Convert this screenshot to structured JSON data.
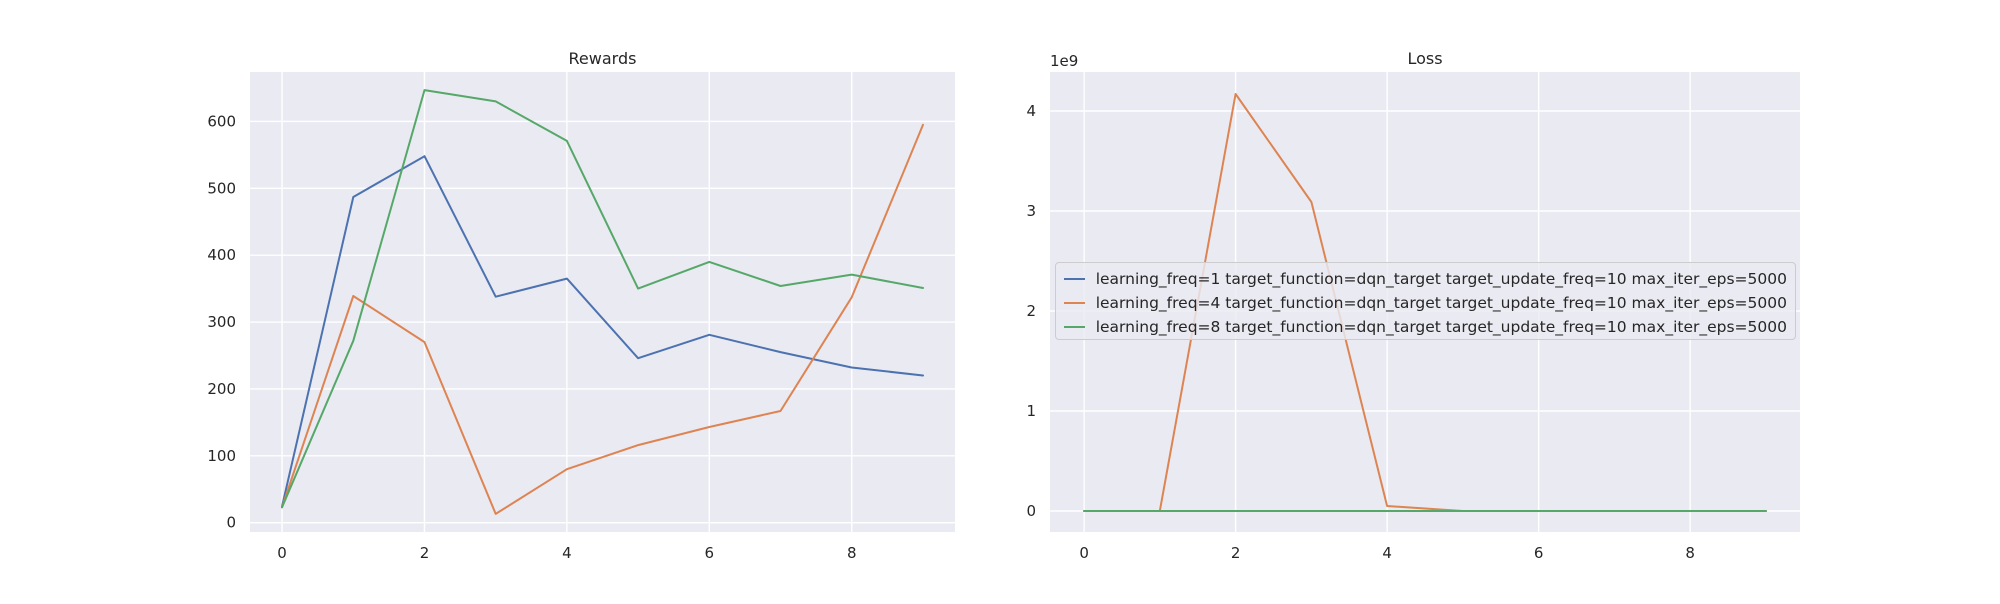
{
  "chart_data": [
    {
      "type": "line",
      "title": "Rewards",
      "xlabel": "",
      "ylabel": "",
      "xlim": [
        -0.45,
        9.45
      ],
      "ylim": [
        -14,
        674
      ],
      "x_ticks": [
        0,
        2,
        4,
        6,
        8
      ],
      "y_ticks": [
        0,
        100,
        200,
        300,
        400,
        500,
        600
      ],
      "offset_text": "",
      "grid": true,
      "legend": "none",
      "x": [
        0,
        1,
        2,
        3,
        4,
        5,
        6,
        7,
        8,
        9
      ],
      "series": [
        {
          "label": "learning_freq=1 target_function=dqn_target target_update_freq=10 max_iter_eps=5000",
          "color": "#4c72b0",
          "values": [
            24,
            487,
            548,
            338,
            365,
            246,
            281,
            255,
            232,
            220
          ]
        },
        {
          "label": "learning_freq=4 target_function=dqn_target target_update_freq=10 max_iter_eps=5000",
          "color": "#dd8452",
          "values": [
            23,
            339,
            270,
            13,
            80,
            116,
            143,
            167,
            337,
            595
          ]
        },
        {
          "label": "learning_freq=8 target_function=dqn_target target_update_freq=10 max_iter_eps=5000",
          "color": "#55a868",
          "values": [
            23,
            272,
            647,
            630,
            571,
            350,
            390,
            354,
            371,
            351
          ]
        }
      ]
    },
    {
      "type": "line",
      "title": "Loss",
      "xlabel": "",
      "ylabel": "",
      "xlim": [
        -0.45,
        9.45
      ],
      "ylim": [
        -0.21,
        4.39
      ],
      "x_ticks": [
        0,
        2,
        4,
        6,
        8
      ],
      "y_ticks": [
        0,
        1,
        2,
        3,
        4
      ],
      "offset_text": "1e9",
      "y_unit_scale": "1e9",
      "grid": true,
      "legend": "center-right",
      "x": [
        0,
        1,
        2,
        3,
        4,
        5,
        6,
        7,
        8,
        9
      ],
      "series": [
        {
          "label": "learning_freq=1 target_function=dqn_target target_update_freq=10 max_iter_eps=5000",
          "color": "#4c72b0",
          "values": [
            0,
            0,
            0,
            0,
            0,
            0,
            0,
            0,
            0,
            0
          ]
        },
        {
          "label": "learning_freq=4 target_function=dqn_target target_update_freq=10 max_iter_eps=5000",
          "color": "#dd8452",
          "values": [
            0,
            0,
            4.17,
            3.09,
            0.05,
            0,
            0,
            0,
            0,
            0
          ]
        },
        {
          "label": "learning_freq=8 target_function=dqn_target target_update_freq=10 max_iter_eps=5000",
          "color": "#55a868",
          "values": [
            0,
            0,
            0,
            0,
            0,
            0,
            0,
            0,
            0,
            0
          ]
        }
      ]
    }
  ]
}
